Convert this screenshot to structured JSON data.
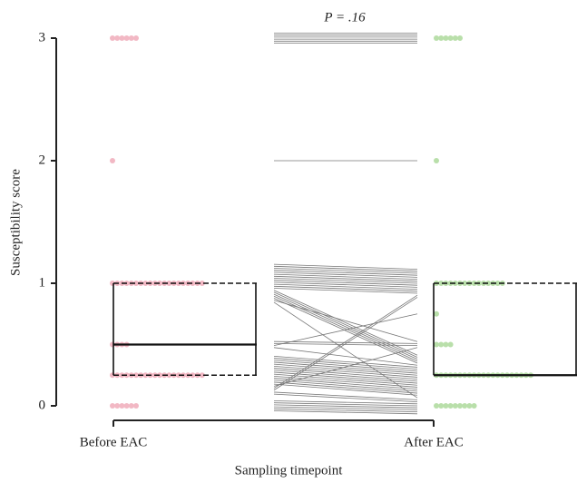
{
  "chart_data": {
    "type": "paired-dot-box",
    "annotation": "P = .16",
    "x_label": "Sampling timepoint",
    "y_label": "Susceptibility score",
    "categories": [
      "Before EAC",
      "After EAC"
    ],
    "ylim": [
      0,
      3
    ],
    "yticks": [
      0,
      1,
      2,
      3
    ],
    "series": [
      {
        "name": "Before EAC",
        "color": "#f2b8c4",
        "values": [
          3,
          3,
          3,
          3,
          3,
          3,
          2,
          1,
          1,
          1,
          1,
          1,
          1,
          1,
          1,
          1,
          1,
          1,
          1,
          1,
          1,
          1,
          1,
          1,
          1,
          1,
          1,
          0.5,
          0.5,
          0.5,
          0.5,
          0.25,
          0.25,
          0.25,
          0.25,
          0.25,
          0.25,
          0.25,
          0.25,
          0.25,
          0.25,
          0.25,
          0.25,
          0.25,
          0.25,
          0.25,
          0.25,
          0.25,
          0.25,
          0.25,
          0.25,
          0,
          0,
          0,
          0,
          0,
          0
        ]
      },
      {
        "name": "After EAC",
        "color": "#b9dfaa",
        "values": [
          3,
          3,
          3,
          3,
          3,
          3,
          2,
          1,
          1,
          1,
          1,
          1,
          1,
          1,
          1,
          1,
          1,
          1,
          1,
          1,
          0.25,
          0.25,
          0.25,
          0.25,
          0.25,
          0.5,
          0,
          0.5,
          0.5,
          0.75,
          0.25,
          0.25,
          0.25,
          0.25,
          0.25,
          0.25,
          0.25,
          0.25,
          0.25,
          0.25,
          0.25,
          0.25,
          0.25,
          0.25,
          0.25,
          0.25,
          0.5,
          1,
          1,
          0,
          0,
          0,
          0,
          0,
          0,
          0,
          0
        ]
      }
    ],
    "boxes": [
      {
        "q1": 0.25,
        "median": 0.5,
        "q3": 1
      },
      {
        "q1": 0.25,
        "median": 0.25,
        "q3": 1
      }
    ]
  }
}
